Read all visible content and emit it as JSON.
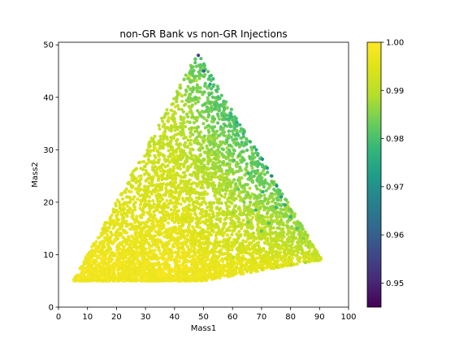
{
  "chart_data": {
    "type": "scatter",
    "title": "non-GR Bank vs non-GR Injections",
    "xlabel": "Mass1",
    "ylabel": "Mass2",
    "xlim": [
      0,
      100
    ],
    "ylim": [
      0,
      50.5
    ],
    "xticks": [
      "0",
      "10",
      "20",
      "30",
      "40",
      "50",
      "60",
      "70",
      "80",
      "90",
      "100"
    ],
    "yticks": [
      "0",
      "10",
      "20",
      "30",
      "40",
      "50"
    ],
    "grid": false,
    "colormap": "viridis",
    "colorbar": {
      "range": [
        0.945,
        1.0
      ],
      "ticks": [
        "0.95",
        "0.96",
        "0.97",
        "0.98",
        "0.99",
        "1.00"
      ]
    },
    "region_vertices": [
      [
        5,
        5
      ],
      [
        48,
        48.5
      ],
      [
        91,
        9
      ],
      [
        50,
        5
      ]
    ],
    "series": [
      {
        "x": [
          48.2,
          50.1,
          47.5,
          52.3,
          55.0,
          58.2,
          61.5,
          63.0,
          66.1,
          68.2,
          70.3,
          72.0,
          73.5,
          75.2,
          76.8,
          78.1,
          80.0,
          82.3,
          84.5,
          86.1,
          88.0,
          90.0,
          45.1,
          42.0,
          40.3,
          38.1,
          36.2,
          33.5,
          30.8,
          28.0,
          25.1,
          22.3,
          19.6,
          16.8,
          14.0,
          11.5,
          9.0,
          7.0,
          10.2,
          15.3,
          20.1,
          25.5,
          30.2,
          35.0,
          40.1,
          45.3,
          48.9,
          55.1,
          60.2,
          65.0,
          70.1,
          75.3,
          80.2,
          85.1,
          89.0,
          20.5,
          25.3,
          30.1,
          35.2,
          40.0,
          45.2,
          50.5,
          55.3,
          60.1,
          65.4,
          70.0,
          30.3,
          35.5,
          40.2,
          45.0,
          50.2,
          55.5,
          60.3,
          35.1,
          40.5,
          45.5,
          50.0,
          55.2,
          40.1,
          45.2,
          50.3,
          60.5,
          65.5,
          70.5,
          75.0,
          62.0,
          68.0,
          72.5,
          58.0,
          64.0
        ],
        "y": [
          48.0,
          45.0,
          43.2,
          42.5,
          40.1,
          38.0,
          35.2,
          34.0,
          31.5,
          30.0,
          28.2,
          26.5,
          25.0,
          23.1,
          21.0,
          19.5,
          17.2,
          15.0,
          13.1,
          11.5,
          10.0,
          9.1,
          44.0,
          40.5,
          38.2,
          36.0,
          33.1,
          30.2,
          27.5,
          24.8,
          22.0,
          19.1,
          16.5,
          13.8,
          11.0,
          9.0,
          7.0,
          5.5,
          5.8,
          5.6,
          5.9,
          5.7,
          5.5,
          5.8,
          5.6,
          5.9,
          5.7,
          6.0,
          6.3,
          6.8,
          7.2,
          7.6,
          8.0,
          8.5,
          9.0,
          10.5,
          12.0,
          14.2,
          16.0,
          18.5,
          20.2,
          22.0,
          20.5,
          18.0,
          16.2,
          14.5,
          8.5,
          10.2,
          12.5,
          14.8,
          12.0,
          10.5,
          9.5,
          25.0,
          28.5,
          30.1,
          32.0,
          30.5,
          35.0,
          37.2,
          36.0,
          28.0,
          25.5,
          22.0,
          19.0,
          22.5,
          18.5,
          16.0,
          26.0,
          20.0
        ],
        "match": [
          0.955,
          0.96,
          0.99,
          0.975,
          0.98,
          0.985,
          0.975,
          0.982,
          0.978,
          0.975,
          0.97,
          0.972,
          0.968,
          0.97,
          0.972,
          0.975,
          0.978,
          0.98,
          0.985,
          0.988,
          0.99,
          0.992,
          0.992,
          0.993,
          0.994,
          0.995,
          0.995,
          0.996,
          0.997,
          0.997,
          0.998,
          0.998,
          0.999,
          0.999,
          0.999,
          1.0,
          1.0,
          1.0,
          1.0,
          1.0,
          1.0,
          0.999,
          0.999,
          0.999,
          0.999,
          0.998,
          0.998,
          0.997,
          0.996,
          0.995,
          0.993,
          0.991,
          0.99,
          0.988,
          0.99,
          0.999,
          0.998,
          0.998,
          0.997,
          0.996,
          0.995,
          0.993,
          0.99,
          0.987,
          0.984,
          0.982,
          0.999,
          0.998,
          0.997,
          0.996,
          0.995,
          0.993,
          0.991,
          0.995,
          0.994,
          0.992,
          0.988,
          0.985,
          0.993,
          0.99,
          0.986,
          0.98,
          0.978,
          0.976,
          0.978,
          0.982,
          0.978,
          0.98,
          0.985,
          0.984
        ]
      }
    ]
  }
}
